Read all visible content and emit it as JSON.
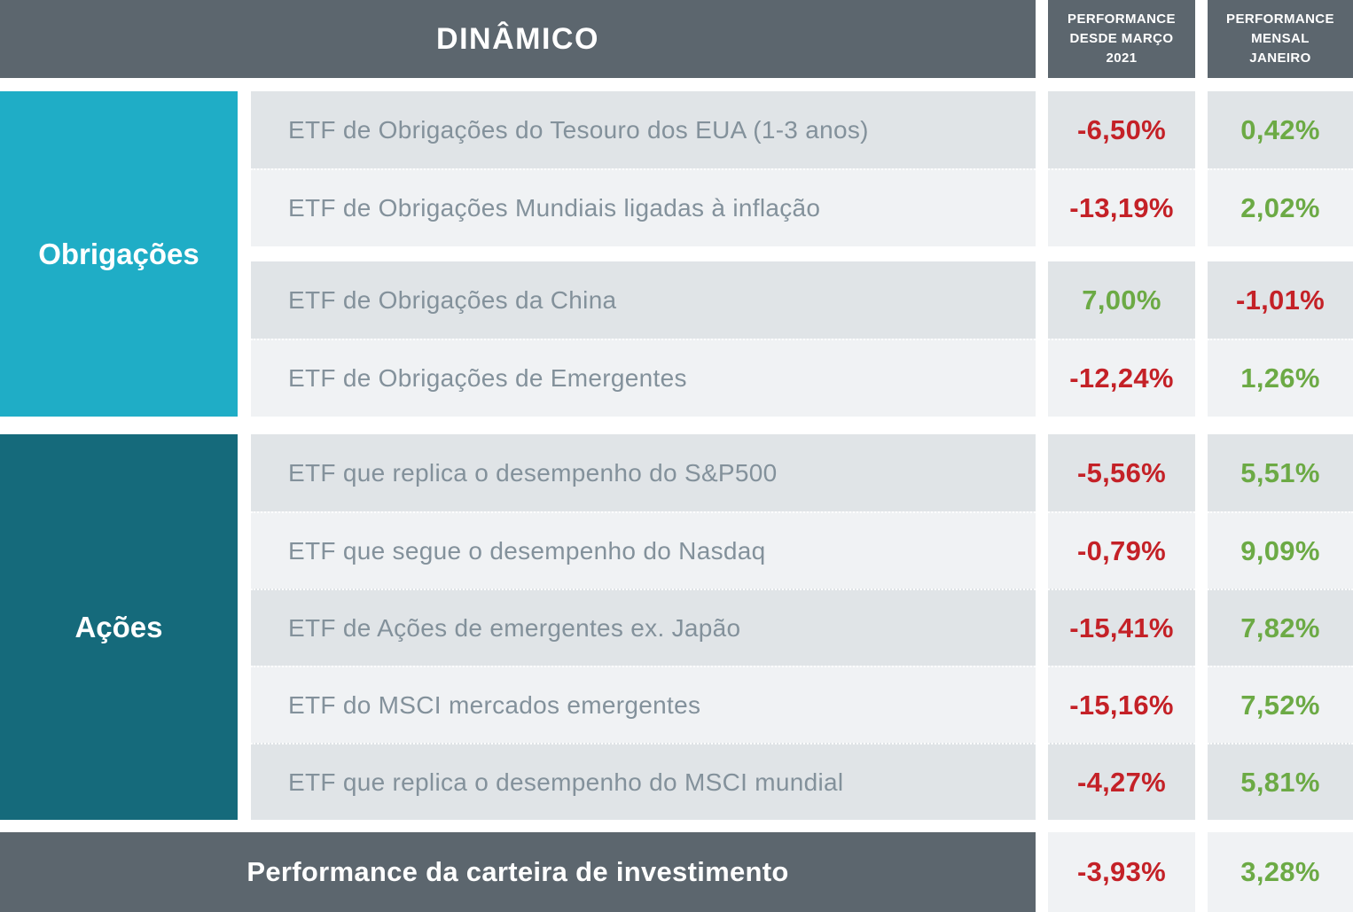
{
  "title": "DINÂMICO",
  "columns": {
    "since_march": "PERFORMANCE\nDESDE MARÇO\n2021",
    "monthly": "PERFORMANCE\nMENSAL\nJANEIRO"
  },
  "groups": {
    "bonds": {
      "label": "Obrigações",
      "color": "#1fadc6"
    },
    "stocks": {
      "label": "Ações",
      "color": "#156a7b"
    }
  },
  "rows": [
    {
      "name": "ETF de Obrigações do Tesouro dos EUA (1-3 anos)",
      "since_march": "-6,50%",
      "monthly": "0,42%"
    },
    {
      "name": "ETF de Obrigações Mundiais ligadas à inflação",
      "since_march": "-13,19%",
      "monthly": "2,02%"
    },
    {
      "name": "ETF de Obrigações da China",
      "since_march": "7,00%",
      "monthly": "-1,01%"
    },
    {
      "name": "ETF de Obrigações de Emergentes",
      "since_march": "-12,24%",
      "monthly": "1,26%"
    },
    {
      "name": "ETF que replica o desempenho do S&P500",
      "since_march": "-5,56%",
      "monthly": "5,51%"
    },
    {
      "name": "ETF que segue o desempenho do Nasdaq",
      "since_march": "-0,79%",
      "monthly": "9,09%"
    },
    {
      "name": "ETF de Ações de emergentes ex. Japão",
      "since_march": "-15,41%",
      "monthly": "7,82%"
    },
    {
      "name": "ETF do MSCI  mercados emergentes",
      "since_march": "-15,16%",
      "monthly": "7,52%"
    },
    {
      "name": "ETF que replica o desempenho do MSCI mundial",
      "since_march": "-4,27%",
      "monthly": "5,81%"
    }
  ],
  "footer": {
    "label": "Performance da carteira de investimento",
    "since_march": "-3,93%",
    "monthly": "3,28%"
  },
  "colors": {
    "header_bg": "#5c666e",
    "negative": "#c42127",
    "positive": "#6caa45",
    "row_dark": "#e0e4e7",
    "row_light": "#f0f2f4",
    "name_text": "#83919b"
  }
}
